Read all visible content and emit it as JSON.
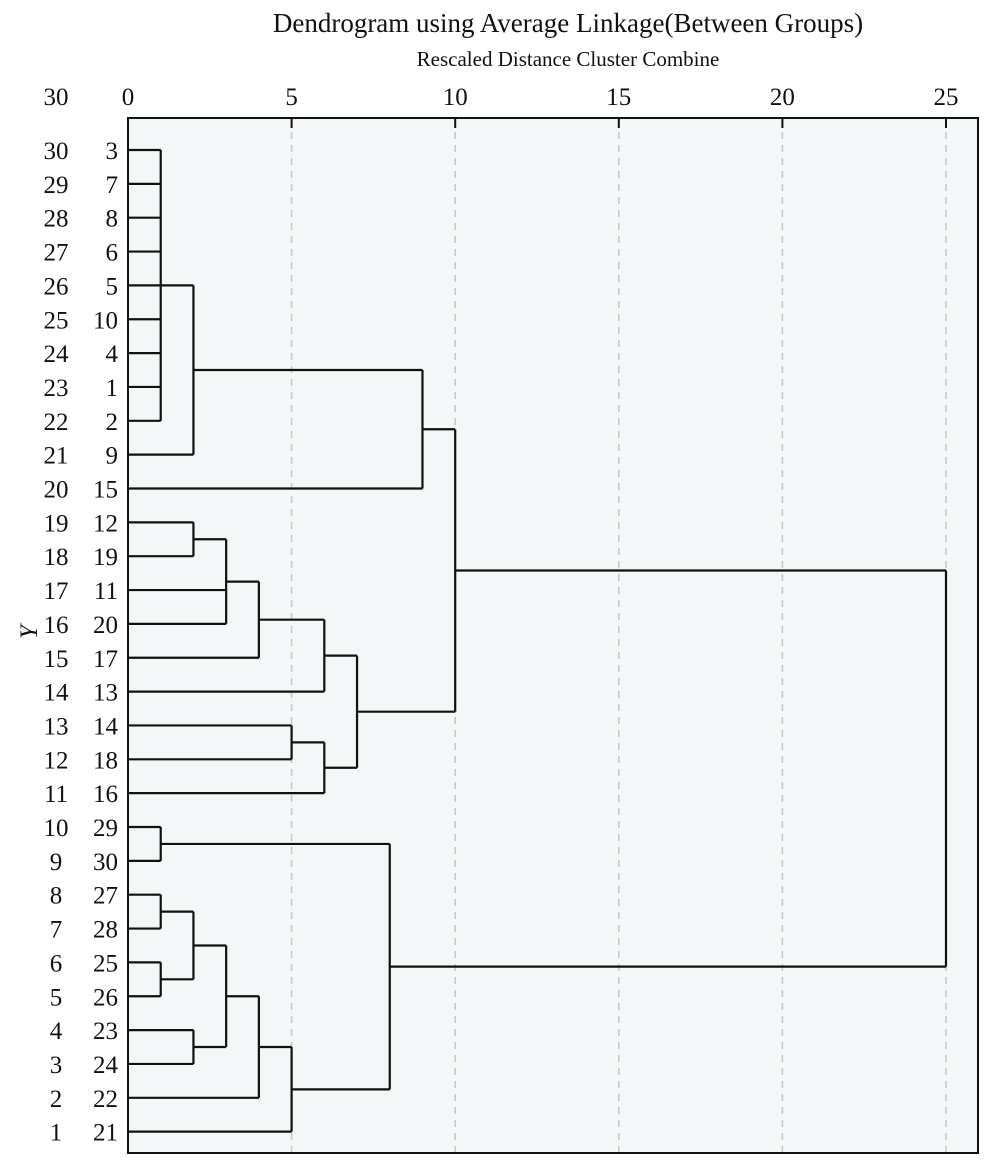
{
  "chart_data": {
    "type": "dendrogram",
    "title": "Dendrogram using Average Linkage(Between Groups)",
    "subtitle": "Rescaled Distance Cluster Combine",
    "xlabel": "Rescaled Distance Cluster Combine",
    "ylabel": "Y",
    "x_ticks": [
      0,
      5,
      10,
      15,
      20,
      25
    ],
    "xlim": [
      0,
      25.5
    ],
    "y_corner_label": "30",
    "grid": true,
    "leaf_order": [
      3,
      7,
      8,
      6,
      5,
      10,
      4,
      1,
      2,
      9,
      15,
      12,
      19,
      11,
      20,
      17,
      13,
      14,
      18,
      16,
      29,
      30,
      27,
      28,
      25,
      26,
      23,
      24,
      22,
      21
    ],
    "row_numbers": [
      30,
      29,
      28,
      27,
      26,
      25,
      24,
      23,
      22,
      21,
      20,
      19,
      18,
      17,
      16,
      15,
      14,
      13,
      12,
      11,
      10,
      9,
      8,
      7,
      6,
      5,
      4,
      3,
      2,
      1
    ],
    "merges": [
      {
        "members": [
          3,
          7,
          8,
          6,
          5,
          10,
          4,
          1,
          2
        ],
        "distance": 1
      },
      {
        "members": [
          3,
          7,
          8,
          6,
          5,
          10,
          4,
          1,
          2,
          9
        ],
        "distance": 2
      },
      {
        "members": [
          3,
          7,
          8,
          6,
          5,
          10,
          4,
          1,
          2,
          9,
          15
        ],
        "distance": 9
      },
      {
        "members": [
          12,
          19
        ],
        "distance": 2
      },
      {
        "members": [
          12,
          19,
          11,
          20
        ],
        "distance": 3
      },
      {
        "members": [
          12,
          19,
          11,
          20,
          17
        ],
        "distance": 4
      },
      {
        "members": [
          12,
          19,
          11,
          20,
          17,
          13
        ],
        "distance": 6
      },
      {
        "members": [
          14,
          18
        ],
        "distance": 5
      },
      {
        "members": [
          14,
          18,
          16
        ],
        "distance": 6
      },
      {
        "members": [
          12,
          19,
          11,
          20,
          17,
          13,
          14,
          18,
          16
        ],
        "distance": 7
      },
      {
        "members": [
          3,
          7,
          8,
          6,
          5,
          10,
          4,
          1,
          2,
          9,
          15,
          12,
          19,
          11,
          20,
          17,
          13,
          14,
          18,
          16
        ],
        "distance": 10
      },
      {
        "members": [
          29,
          30
        ],
        "distance": 1
      },
      {
        "members": [
          27,
          28
        ],
        "distance": 1
      },
      {
        "members": [
          25,
          26
        ],
        "distance": 1
      },
      {
        "members": [
          27,
          28,
          25,
          26
        ],
        "distance": 2
      },
      {
        "members": [
          23,
          24
        ],
        "distance": 2
      },
      {
        "members": [
          27,
          28,
          25,
          26,
          23,
          24
        ],
        "distance": 3
      },
      {
        "members": [
          27,
          28,
          25,
          26,
          23,
          24,
          22
        ],
        "distance": 4
      },
      {
        "members": [
          27,
          28,
          25,
          26,
          23,
          24,
          22,
          21
        ],
        "distance": 5
      },
      {
        "members": [
          29,
          30,
          27,
          28,
          25,
          26,
          23,
          24,
          22,
          21
        ],
        "distance": 8
      },
      {
        "members": [
          3,
          7,
          8,
          6,
          5,
          10,
          4,
          1,
          2,
          9,
          15,
          12,
          19,
          11,
          20,
          17,
          13,
          14,
          18,
          16,
          29,
          30,
          27,
          28,
          25,
          26,
          23,
          24,
          22,
          21
        ],
        "distance": 25
      }
    ],
    "colors": {
      "background": "#f4f7f7",
      "line": "#111111",
      "grid": "#c8c8c8"
    }
  }
}
